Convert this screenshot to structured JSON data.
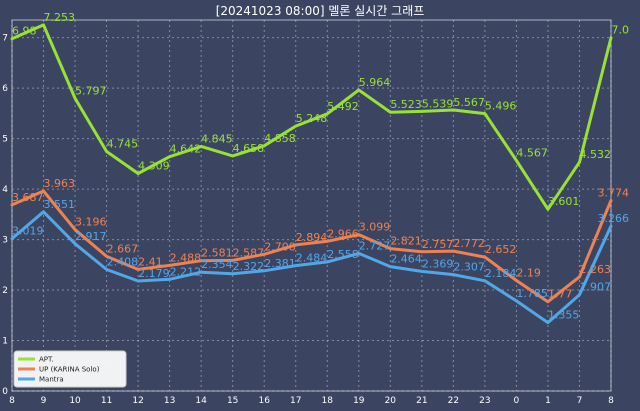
{
  "chart_data": {
    "type": "line",
    "title": "[20241023 08:00] 멜론 실시간 그래프",
    "categories": [
      "8",
      "9",
      "10",
      "11",
      "12",
      "13",
      "14",
      "15",
      "16",
      "17",
      "18",
      "19",
      "20",
      "21",
      "22",
      "23",
      "0",
      "1",
      "7",
      "8"
    ],
    "x_ticks": [
      "8",
      "9",
      "10",
      "11",
      "12",
      "13",
      "14",
      "15",
      "16",
      "17",
      "18",
      "19",
      "20",
      "21",
      "22",
      "23",
      "0",
      "1",
      "7",
      "8"
    ],
    "y_ticks": [
      "0",
      "1",
      "2",
      "3",
      "4",
      "5",
      "6",
      "7"
    ],
    "ylim": [
      0,
      7.35
    ],
    "grid": true,
    "legend_position": "bottom-left",
    "series": [
      {
        "name": "APT.",
        "color": "#99e135",
        "values": [
          6.98,
          7.253,
          5.797,
          4.745,
          4.309,
          4.642,
          4.845,
          4.658,
          4.858,
          5.248,
          5.492,
          5.964,
          5.523,
          5.539,
          5.567,
          5.496,
          4.567,
          3.601,
          4.532,
          7.0
        ],
        "labels": [
          "6.98",
          "7.253",
          "5.797",
          "4.745",
          "4.309",
          "4.642",
          "4.845",
          "4.658",
          "4.858",
          "5.248",
          "5.492",
          "5.964",
          "5.523",
          "5.539",
          "5.567",
          "5.496",
          "4.567",
          "3.601",
          "4.532",
          "7.0"
        ]
      },
      {
        "name": "UP (KARINA Solo)",
        "color": "#ee8252",
        "values": [
          3.687,
          3.963,
          3.196,
          2.667,
          2.41,
          2.488,
          2.581,
          2.587,
          2.708,
          2.894,
          2.966,
          3.099,
          2.821,
          2.757,
          2.772,
          2.652,
          2.19,
          1.77,
          2.263,
          3.774
        ],
        "labels": [
          "3.687",
          "3.963",
          "3.196",
          "2.667",
          "2.41",
          "2.488",
          "2.581",
          "2.587",
          "2.708",
          "2.894",
          "2.966",
          "3.099",
          "2.821",
          "2.757",
          "2.772",
          "2.652",
          "2.19",
          "1.77",
          "2.263",
          "3.774"
        ]
      },
      {
        "name": "Mantra",
        "color": "#52a7e8",
        "values": [
          3.019,
          3.551,
          2.917,
          2.408,
          2.179,
          2.212,
          2.354,
          2.322,
          2.381,
          2.484,
          2.558,
          2.727,
          2.464,
          2.369,
          2.307,
          2.184,
          1.785,
          1.355,
          1.907,
          3.266
        ],
        "labels": [
          "3.019",
          "3.551",
          "2.917",
          "2.408",
          "2.179",
          "2.212",
          "2.354",
          "2.322",
          "2.381",
          "2.484",
          "2.558",
          "2.727",
          "2.464",
          "2.369",
          "2.307",
          "2.184",
          "1.785",
          "1.355",
          "1.907",
          "3.266"
        ]
      }
    ]
  }
}
